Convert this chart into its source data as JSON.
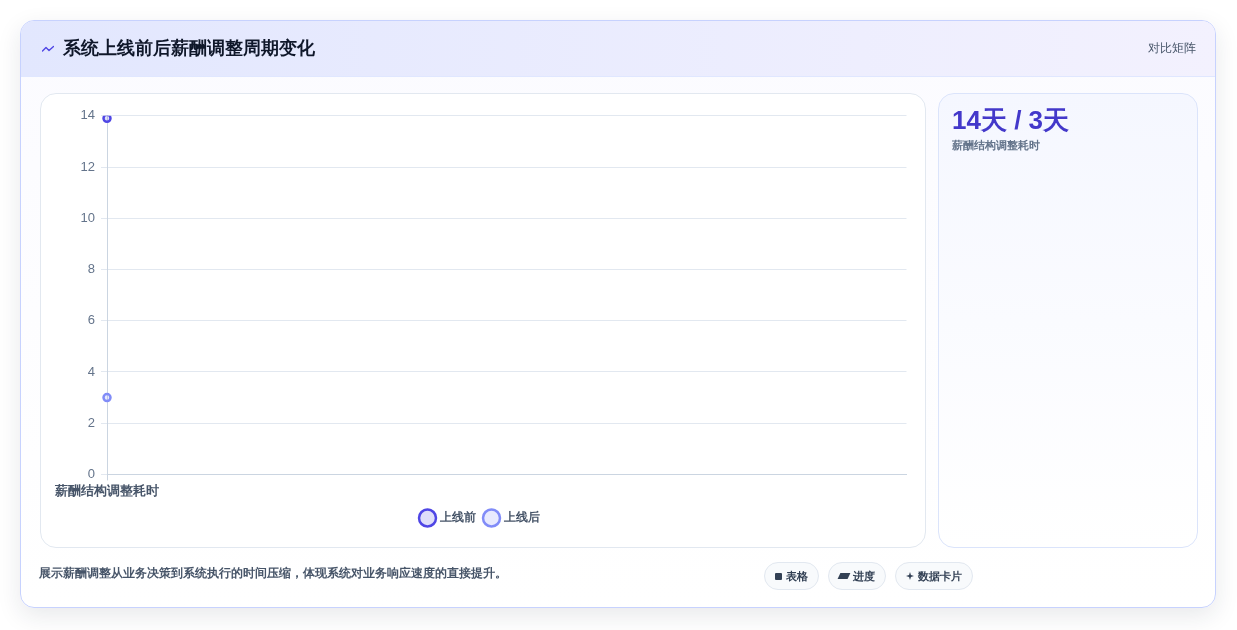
{
  "chart_data": {
    "type": "line",
    "title": "系统上线前后薪酬调整周期变化",
    "categories": [
      "薪酬结构调整耗时"
    ],
    "series": [
      {
        "name": "上线前",
        "color": "#4f46e5",
        "values": [
          13.9
        ]
      },
      {
        "name": "上线后",
        "color": "#818cf8",
        "values": [
          3
        ]
      }
    ],
    "ylim": [
      0,
      14
    ],
    "yticks": [
      0,
      2,
      4,
      6,
      8,
      10,
      12,
      14
    ],
    "grid": "y",
    "legend": "bottom",
    "marker": "circle",
    "annotations": [
      "对比矩阵",
      "14天 / 3天",
      "薪酬结构调整耗时",
      "展示薪酬调整从业务决策到系统执行的时间压缩，体现系统对业务响应速度的直接提升。",
      "表格",
      "进度",
      "数据卡片"
    ]
  }
}
